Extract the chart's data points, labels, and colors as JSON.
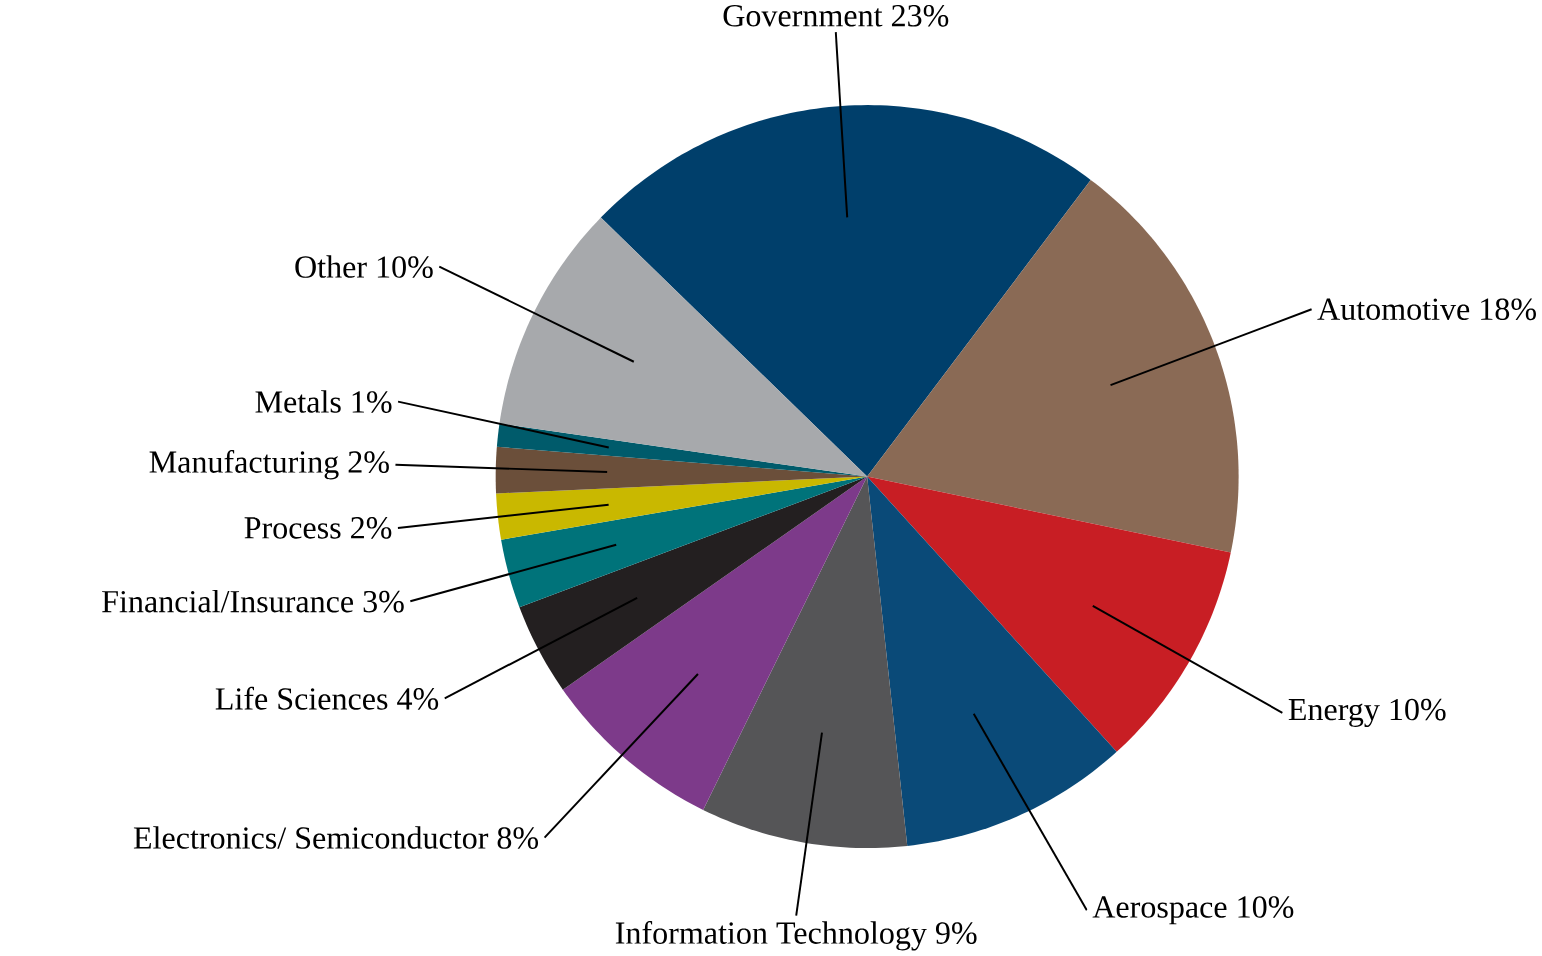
{
  "chart_data": {
    "type": "pie",
    "categories": [
      "Government",
      "Automotive",
      "Energy",
      "Aerospace",
      "Information Technology",
      "Electronics/ Semiconductor",
      "Life Sciences",
      "Financial/Insurance",
      "Process",
      "Manufacturing",
      "Metals",
      "Other"
    ],
    "values": [
      23,
      18,
      10,
      10,
      9,
      8,
      4,
      3,
      2,
      2,
      1,
      10
    ],
    "value_labels": [
      "23%",
      "18%",
      "10%",
      "10%",
      "9%",
      "8%",
      "4%",
      "3%",
      "2%",
      "2%",
      "1%",
      "10%"
    ],
    "colors": [
      "#003f6b",
      "#8a6a55",
      "#c81e24",
      "#0a4a78",
      "#555557",
      "#7d3a8a",
      "#231f20",
      "#00737a",
      "#c9b800",
      "#6b4f3a",
      "#005b6b",
      "#a7a9ac"
    ]
  }
}
